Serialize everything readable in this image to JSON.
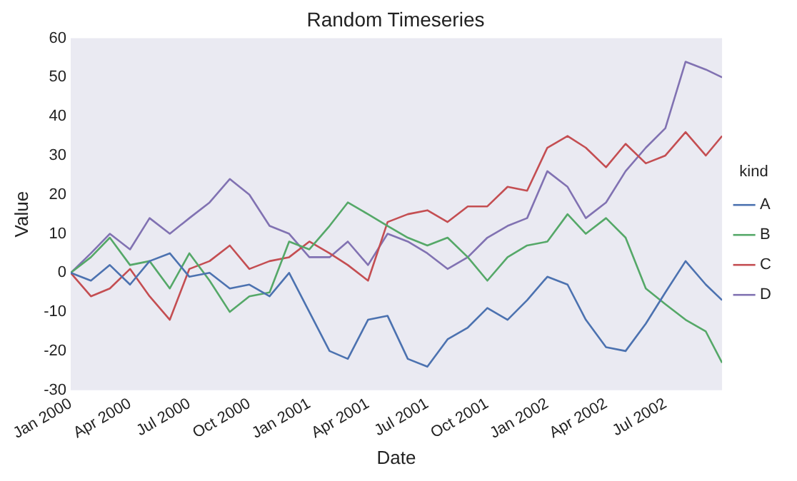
{
  "chart_data": {
    "type": "line",
    "title": "Random Timeseries",
    "xlabel": "Date",
    "ylabel": "Value",
    "legend_title": "kind",
    "legend": "right",
    "x": [
      "2000-01-01",
      "2000-02-01",
      "2000-03-01",
      "2000-04-01",
      "2000-05-01",
      "2000-06-01",
      "2000-07-01",
      "2000-08-01",
      "2000-09-01",
      "2000-10-01",
      "2000-11-01",
      "2000-12-01",
      "2001-01-01",
      "2001-02-01",
      "2001-03-01",
      "2001-04-01",
      "2001-05-01",
      "2001-06-01",
      "2001-07-01",
      "2001-08-01",
      "2001-09-01",
      "2001-10-01",
      "2001-11-01",
      "2001-12-01",
      "2002-01-01",
      "2002-02-01",
      "2002-03-01",
      "2002-04-01",
      "2002-05-01",
      "2002-06-01",
      "2002-07-01",
      "2002-08-01",
      "2002-09-01",
      "2002-09-26"
    ],
    "series": [
      {
        "name": "A",
        "color": "#4c72b0",
        "values": [
          0,
          -2,
          2,
          -3,
          3,
          5,
          -1,
          0,
          -4,
          -3,
          -6,
          0,
          -10,
          -20,
          -22,
          -12,
          -11,
          -22,
          -24,
          -17,
          -14,
          -9,
          -12,
          -7,
          -1,
          -3,
          -12,
          -19,
          -20,
          -13,
          -5,
          3,
          -3,
          -7
        ]
      },
      {
        "name": "B",
        "color": "#55a868",
        "values": [
          0,
          4,
          9,
          2,
          3,
          -4,
          5,
          -2,
          -10,
          -6,
          -5,
          8,
          6,
          12,
          18,
          15,
          12,
          9,
          7,
          9,
          4,
          -2,
          4,
          7,
          8,
          15,
          10,
          14,
          9,
          -4,
          -8,
          -12,
          -15,
          -23
        ]
      },
      {
        "name": "C",
        "color": "#c44e52",
        "values": [
          0,
          -6,
          -4,
          1,
          -6,
          -12,
          1,
          3,
          7,
          1,
          3,
          4,
          8,
          5,
          2,
          -2,
          13,
          15,
          16,
          13,
          17,
          17,
          22,
          21,
          32,
          35,
          32,
          27,
          33,
          28,
          30,
          36,
          30,
          35
        ]
      },
      {
        "name": "D",
        "color": "#8172b2",
        "values": [
          0,
          5,
          10,
          6,
          14,
          10,
          14,
          18,
          24,
          20,
          12,
          10,
          4,
          4,
          8,
          2,
          10,
          8,
          5,
          1,
          4,
          9,
          12,
          14,
          26,
          22,
          14,
          18,
          26,
          32,
          37,
          54,
          52,
          50
        ]
      }
    ],
    "xlim": [
      "2000-01-01",
      "2002-09-26"
    ],
    "xticks": [
      {
        "value": "2000-01-01",
        "label": "Jan 2000"
      },
      {
        "value": "2000-04-01",
        "label": "Apr 2000"
      },
      {
        "value": "2000-07-01",
        "label": "Jul 2000"
      },
      {
        "value": "2000-10-01",
        "label": "Oct 2000"
      },
      {
        "value": "2001-01-01",
        "label": "Jan 2001"
      },
      {
        "value": "2001-04-01",
        "label": "Apr 2001"
      },
      {
        "value": "2001-07-01",
        "label": "Jul 2001"
      },
      {
        "value": "2001-10-01",
        "label": "Oct 2001"
      },
      {
        "value": "2002-01-01",
        "label": "Jan 2002"
      },
      {
        "value": "2002-04-01",
        "label": "Apr 2002"
      },
      {
        "value": "2002-07-01",
        "label": "Jul 2002"
      }
    ],
    "ylim": [
      -30,
      60
    ],
    "yticks": [
      -30,
      -20,
      -10,
      0,
      10,
      20,
      30,
      40,
      50,
      60
    ],
    "marker": "none",
    "line_style": "solid",
    "grid": false
  }
}
